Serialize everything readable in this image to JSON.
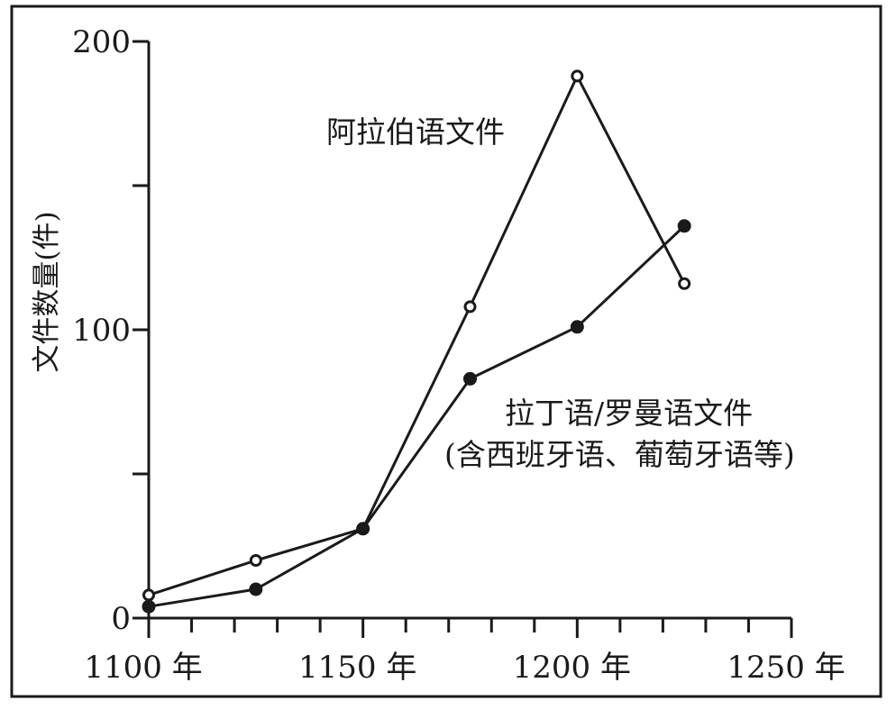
{
  "chart_data": {
    "type": "line",
    "ylabel": "文件数量(件)",
    "xlabel": "",
    "x_ticks": [
      {
        "value": 1100,
        "label": "1100 年"
      },
      {
        "value": 1150,
        "label": "1150 年"
      },
      {
        "value": 1200,
        "label": "1200 年"
      },
      {
        "value": 1250,
        "label": "1250 年"
      }
    ],
    "y_ticks": [
      {
        "value": 0,
        "label": "0"
      },
      {
        "value": 100,
        "label": "100"
      },
      {
        "value": 200,
        "label": "200"
      }
    ],
    "xlim": [
      1100,
      1250
    ],
    "ylim": [
      0,
      200
    ],
    "x_minor_step": 10,
    "y_minor_step": 50,
    "grid": false,
    "series": [
      {
        "name": "阿拉伯语文件",
        "marker": "open-circle",
        "color": "#1a1a1a",
        "x": [
          1100,
          1125,
          1150,
          1175,
          1200,
          1225
        ],
        "y": [
          8,
          20,
          31,
          108,
          188,
          116
        ]
      },
      {
        "name": "拉丁语/罗曼语文件",
        "name_line2": "(含西班牙语、葡萄牙语等)",
        "marker": "filled-circle",
        "color": "#1a1a1a",
        "x": [
          1100,
          1125,
          1150,
          1175,
          1200,
          1225
        ],
        "y": [
          4,
          10,
          31,
          83,
          101,
          136
        ]
      }
    ]
  }
}
